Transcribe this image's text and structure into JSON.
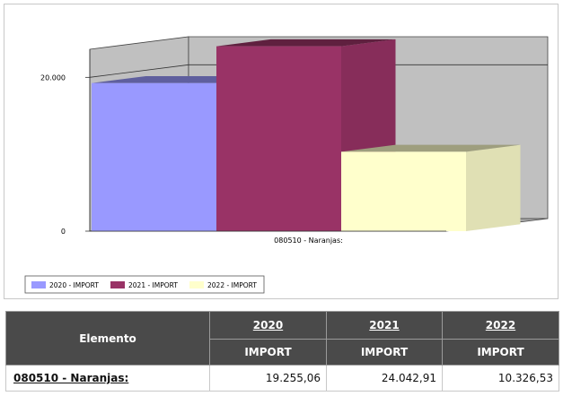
{
  "chart_data": {
    "type": "bar",
    "title": "",
    "xlabel": "",
    "ylabel": "",
    "categories": [
      "080510 - Naranjas:"
    ],
    "series": [
      {
        "name": "2020 - IMPORT",
        "values": [
          19255.06
        ],
        "color": "#9999ff"
      },
      {
        "name": "2021 - IMPORT",
        "values": [
          24042.91
        ],
        "color": "#993366"
      },
      {
        "name": "2022 - IMPORT",
        "values": [
          10326.53
        ],
        "color": "#ffffcc"
      }
    ],
    "yticks": [
      {
        "value": 0,
        "label": "0"
      },
      {
        "value": 20000,
        "label": "20.000"
      }
    ],
    "ylim": [
      0,
      24000
    ],
    "grid": true,
    "legend_position": "bottom-left"
  },
  "table": {
    "header_elemento": "Elemento",
    "years": [
      "2020",
      "2021",
      "2022"
    ],
    "subheaders": [
      "IMPORT",
      "IMPORT",
      "IMPORT"
    ],
    "rows": [
      {
        "elemento": "080510 - Naranjas:",
        "values": [
          "19.255,06",
          "24.042,91",
          "10.326,53"
        ]
      }
    ]
  }
}
